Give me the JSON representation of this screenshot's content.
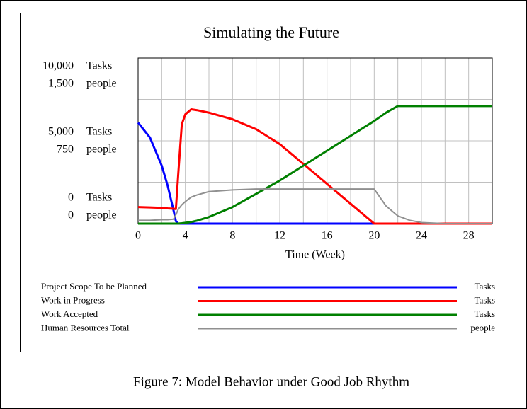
{
  "chart_data": {
    "type": "line",
    "title": "Simulating the Future",
    "xlabel": "Time (Week)",
    "caption": "Figure 7: Model Behavior under Good Job Rhythm",
    "y_unit": "Tasks",
    "y2_unit": "people",
    "x": [
      0,
      1,
      2,
      2.5,
      3,
      3.2,
      3.4,
      3.7,
      4,
      4.5,
      5,
      6,
      8,
      10,
      12,
      14,
      16,
      18,
      20,
      21,
      22,
      23,
      24,
      26,
      28,
      30
    ],
    "xlim": [
      0,
      30
    ],
    "xticks": [
      0,
      4,
      8,
      12,
      16,
      20,
      24,
      28
    ],
    "minor_xticks": [
      2,
      6,
      10,
      14,
      18,
      22,
      26,
      30
    ],
    "ylim": [
      0,
      10000
    ],
    "yticks": [
      0,
      {
        "value": 5000,
        "label": "5,000"
      },
      {
        "value": 10000,
        "label": "10,000"
      }
    ],
    "minor_yticks": [
      2500,
      7500
    ],
    "y2lim": [
      0,
      1500
    ],
    "y2ticks": [
      0,
      750,
      {
        "value": 1500,
        "label": "1,500"
      }
    ],
    "grid": true,
    "series": [
      {
        "name": "Project Scope To be Planned",
        "unit": "Tasks",
        "color": "#0000ff",
        "values": [
          6100,
          5200,
          3500,
          2300,
          800,
          150,
          0,
          0,
          0,
          0,
          0,
          0,
          0,
          0,
          0,
          0,
          0,
          0,
          0,
          0,
          0,
          0,
          0,
          0,
          0,
          0
        ]
      },
      {
        "name": "Work in Progress",
        "unit": "Tasks",
        "color": "#ff0000",
        "values": [
          1000,
          980,
          950,
          920,
          900,
          880,
          3000,
          6000,
          6600,
          6900,
          6850,
          6700,
          6300,
          5700,
          4800,
          3600,
          2400,
          1200,
          0,
          0,
          0,
          0,
          0,
          0,
          0,
          0
        ]
      },
      {
        "name": "Work Accepted",
        "unit": "Tasks",
        "color": "#008000",
        "values": [
          0,
          0,
          0,
          0,
          0,
          0,
          0,
          20,
          50,
          100,
          180,
          400,
          1000,
          1800,
          2600,
          3500,
          4400,
          5300,
          6200,
          6700,
          7100,
          7100,
          7100,
          7100,
          7100,
          7100
        ]
      },
      {
        "name": "Human Resources Total",
        "unit": "people",
        "color": "#909090",
        "axis": "y2",
        "values": [
          30,
          30,
          35,
          35,
          40,
          80,
          130,
          170,
          200,
          240,
          260,
          290,
          305,
          313,
          313,
          313,
          313,
          313,
          313,
          160,
          70,
          30,
          10,
          0,
          0,
          0
        ]
      }
    ]
  }
}
